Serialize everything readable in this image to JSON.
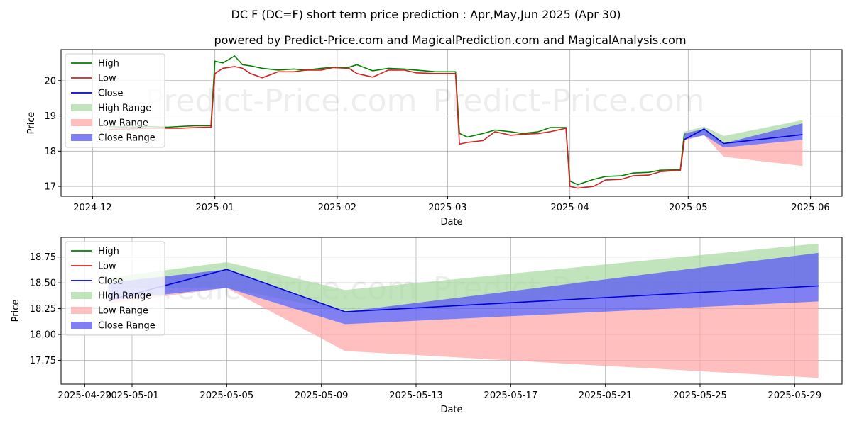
{
  "title_line1": "DC F (DC=F) short term price prediction : Apr,May,Jun 2025 (Apr 30)",
  "title_line2": "powered by Predict-Price.com and MagicalPrediction.com and MagicalAnalysis.com",
  "watermark": "Predict-Price.com",
  "colors": {
    "high": "#008000",
    "low": "#d62020",
    "close": "#0000dd",
    "high_range": "#a8d8a0",
    "low_range": "#ffaaaa",
    "close_range": "#6060f0"
  },
  "chart_data": [
    {
      "type": "line",
      "xlabel": "Date",
      "ylabel": "Price",
      "xlim": [
        "2024-11-23",
        "2025-06-09"
      ],
      "ylim": [
        16.72,
        20.88
      ],
      "grid": true,
      "legend_placement": "top-left",
      "x_ticks": [
        "2024-12-01",
        "2025-01-01",
        "2025-02-01",
        "2025-03-01",
        "2025-04-01",
        "2025-05-01",
        "2025-06-01"
      ],
      "x_tick_labels": [
        "2024-12",
        "2025-01",
        "2025-02",
        "2025-03",
        "2025-04",
        "2025-05",
        "2025-06"
      ],
      "y_ticks": [
        17,
        18,
        19,
        20
      ],
      "y_tick_labels": [
        "17",
        "18",
        "19",
        "20"
      ],
      "legend": [
        "High",
        "Low",
        "Close",
        "High Range",
        "Low Range",
        "Close Range"
      ],
      "series": [
        {
          "name": "High",
          "x": [
            "2024-12-05",
            "2024-12-10",
            "2024-12-15",
            "2024-12-20",
            "2024-12-23",
            "2024-12-27",
            "2024-12-31",
            "2025-01-01",
            "2025-01-03",
            "2025-01-06",
            "2025-01-08",
            "2025-01-10",
            "2025-01-13",
            "2025-01-17",
            "2025-01-21",
            "2025-01-24",
            "2025-01-28",
            "2025-01-31",
            "2025-02-04",
            "2025-02-06",
            "2025-02-10",
            "2025-02-14",
            "2025-02-18",
            "2025-02-21",
            "2025-02-26",
            "2025-02-28",
            "2025-03-03",
            "2025-03-04",
            "2025-03-06",
            "2025-03-10",
            "2025-03-13",
            "2025-03-17",
            "2025-03-20",
            "2025-03-24",
            "2025-03-27",
            "2025-03-31",
            "2025-04-01",
            "2025-04-03",
            "2025-04-07",
            "2025-04-10",
            "2025-04-14",
            "2025-04-17",
            "2025-04-21",
            "2025-04-24",
            "2025-04-28",
            "2025-04-29",
            "2025-04-30"
          ],
          "values": [
            18.7,
            18.68,
            18.7,
            18.68,
            18.7,
            18.72,
            18.72,
            20.55,
            20.5,
            20.7,
            20.45,
            20.42,
            20.35,
            20.3,
            20.33,
            20.3,
            20.35,
            20.38,
            20.38,
            20.45,
            20.28,
            20.35,
            20.33,
            20.3,
            20.25,
            20.25,
            20.25,
            18.5,
            18.4,
            18.5,
            18.6,
            18.55,
            18.5,
            18.55,
            18.67,
            18.67,
            17.15,
            17.05,
            17.2,
            17.28,
            17.3,
            17.38,
            17.4,
            17.46,
            17.47,
            17.47,
            18.5
          ]
        },
        {
          "name": "Low",
          "x": [
            "2024-12-05",
            "2024-12-10",
            "2024-12-15",
            "2024-12-20",
            "2024-12-23",
            "2024-12-27",
            "2024-12-31",
            "2025-01-01",
            "2025-01-03",
            "2025-01-06",
            "2025-01-08",
            "2025-01-10",
            "2025-01-13",
            "2025-01-17",
            "2025-01-21",
            "2025-01-24",
            "2025-01-28",
            "2025-01-31",
            "2025-02-04",
            "2025-02-06",
            "2025-02-10",
            "2025-02-14",
            "2025-02-18",
            "2025-02-21",
            "2025-02-26",
            "2025-02-28",
            "2025-03-03",
            "2025-03-04",
            "2025-03-06",
            "2025-03-10",
            "2025-03-13",
            "2025-03-17",
            "2025-03-20",
            "2025-03-24",
            "2025-03-27",
            "2025-03-31",
            "2025-04-01",
            "2025-04-03",
            "2025-04-07",
            "2025-04-10",
            "2025-04-14",
            "2025-04-17",
            "2025-04-21",
            "2025-04-24",
            "2025-04-28",
            "2025-04-29",
            "2025-04-30"
          ],
          "values": [
            18.62,
            18.63,
            18.65,
            18.65,
            18.65,
            18.67,
            18.68,
            20.2,
            20.35,
            20.4,
            20.35,
            20.2,
            20.08,
            20.25,
            20.25,
            20.3,
            20.3,
            20.37,
            20.35,
            20.2,
            20.1,
            20.3,
            20.3,
            20.22,
            20.2,
            20.2,
            20.2,
            18.2,
            18.25,
            18.3,
            18.55,
            18.45,
            18.48,
            18.5,
            18.55,
            18.65,
            17.0,
            16.95,
            17.0,
            17.18,
            17.2,
            17.3,
            17.32,
            17.42,
            17.45,
            17.45,
            18.3
          ]
        },
        {
          "name": "Close",
          "x": [
            "2025-04-30",
            "2025-05-05",
            "2025-05-10",
            "2025-05-30"
          ],
          "values": [
            18.33,
            18.63,
            18.22,
            18.47
          ]
        },
        {
          "name": "High Range",
          "x": [
            "2025-04-30",
            "2025-05-05",
            "2025-05-10",
            "2025-05-30"
          ],
          "upper": [
            18.55,
            18.7,
            18.43,
            18.88
          ],
          "lower": [
            18.45,
            18.45,
            18.22,
            18.47
          ]
        },
        {
          "name": "Low Range",
          "x": [
            "2025-04-30",
            "2025-05-05",
            "2025-05-10",
            "2025-05-30"
          ],
          "upper": [
            18.33,
            18.45,
            18.1,
            18.32
          ],
          "lower": [
            18.3,
            18.45,
            17.84,
            17.58
          ]
        },
        {
          "name": "Close Range",
          "x": [
            "2025-04-30",
            "2025-05-05",
            "2025-05-10",
            "2025-05-30"
          ],
          "upper": [
            18.5,
            18.63,
            18.22,
            18.79
          ],
          "lower": [
            18.33,
            18.45,
            18.1,
            18.32
          ]
        }
      ]
    },
    {
      "type": "line",
      "xlabel": "Date",
      "ylabel": "Price",
      "xlim": [
        "2025-04-28",
        "2025-05-31"
      ],
      "ylim": [
        17.52,
        18.94
      ],
      "grid": true,
      "legend_placement": "top-left",
      "x_ticks": [
        "2025-04-29",
        "2025-05-01",
        "2025-05-05",
        "2025-05-09",
        "2025-05-13",
        "2025-05-17",
        "2025-05-21",
        "2025-05-25",
        "2025-05-29"
      ],
      "x_tick_labels": [
        "2025-04-29",
        "2025-05-01",
        "2025-05-05",
        "2025-05-09",
        "2025-05-13",
        "2025-05-17",
        "2025-05-21",
        "2025-05-25",
        "2025-05-29"
      ],
      "y_ticks": [
        17.75,
        18.0,
        18.25,
        18.5,
        18.75
      ],
      "y_tick_labels": [
        "17.75",
        "18.00",
        "18.25",
        "18.50",
        "18.75"
      ],
      "legend": [
        "High",
        "Low",
        "Close",
        "High Range",
        "Low Range",
        "Close Range"
      ],
      "series": [
        {
          "name": "Close",
          "x": [
            "2025-04-30",
            "2025-05-05",
            "2025-05-10",
            "2025-05-30"
          ],
          "values": [
            18.33,
            18.63,
            18.22,
            18.47
          ]
        },
        {
          "name": "High Range",
          "x": [
            "2025-04-30",
            "2025-05-05",
            "2025-05-10",
            "2025-05-30"
          ],
          "upper": [
            18.55,
            18.7,
            18.43,
            18.88
          ],
          "lower": [
            18.45,
            18.45,
            18.22,
            18.47
          ]
        },
        {
          "name": "Low Range",
          "x": [
            "2025-04-30",
            "2025-05-05",
            "2025-05-10",
            "2025-05-30"
          ],
          "upper": [
            18.33,
            18.45,
            18.1,
            18.32
          ],
          "lower": [
            18.3,
            18.45,
            17.84,
            17.58
          ]
        },
        {
          "name": "Close Range",
          "x": [
            "2025-04-30",
            "2025-05-05",
            "2025-05-10",
            "2025-05-30"
          ],
          "upper": [
            18.5,
            18.63,
            18.22,
            18.79
          ],
          "lower": [
            18.33,
            18.45,
            18.1,
            18.32
          ]
        }
      ]
    }
  ]
}
